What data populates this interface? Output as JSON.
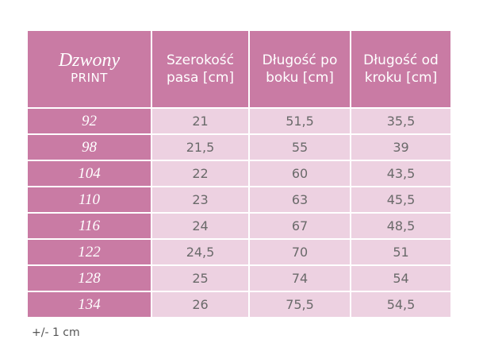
{
  "header": {
    "brand": "Dzwony",
    "subtitle": "PRINT",
    "columns": [
      "Szerokość pasa [cm]",
      "Długość po boku [cm]",
      "Długość od kroku [cm]"
    ]
  },
  "table": {
    "rows": [
      [
        "92",
        "21",
        "51,5",
        "35,5"
      ],
      [
        "98",
        "21,5",
        "55",
        "39"
      ],
      [
        "104",
        "22",
        "60",
        "43,5"
      ],
      [
        "110",
        "23",
        "63",
        "45,5"
      ],
      [
        "116",
        "24",
        "67",
        "48,5"
      ],
      [
        "122",
        "24,5",
        "70",
        "51"
      ],
      [
        "128",
        "25",
        "74",
        "54"
      ],
      [
        "134",
        "26",
        "75,5",
        "54,5"
      ]
    ]
  },
  "footnote": "+/- 1 cm"
}
